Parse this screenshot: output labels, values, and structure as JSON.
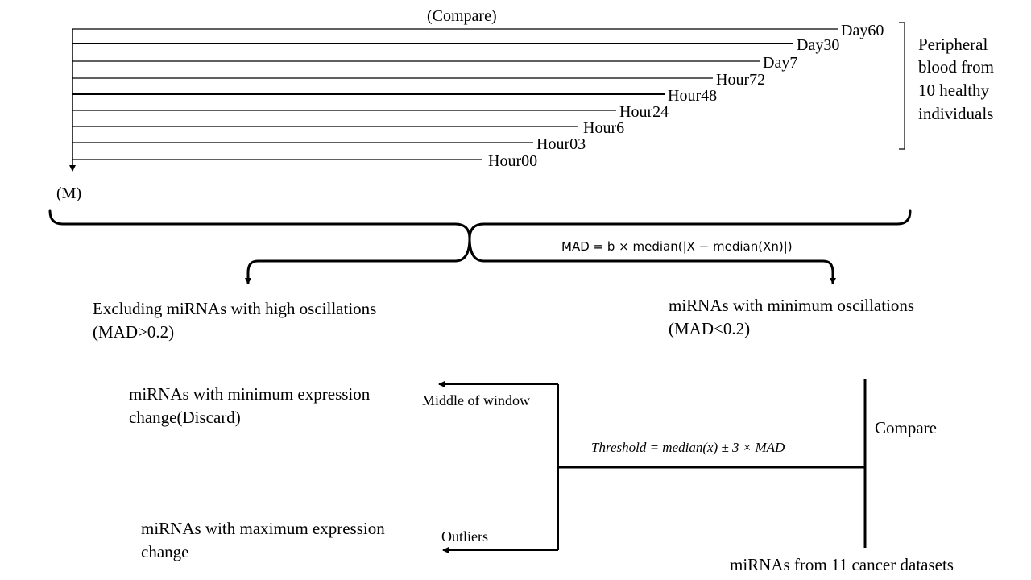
{
  "timeline": {
    "top_label": "(Compare)",
    "bottom_label": "(M)",
    "timepoints": [
      "Day60",
      "Day30",
      "Day7",
      "Hour72",
      "Hour48",
      "Hour24",
      "Hour6",
      "Hour03",
      "Hour00"
    ],
    "source_label_lines": [
      "Peripheral",
      "blood from",
      "10 healthy",
      "individuals"
    ]
  },
  "mad_formula": "MAD = b × median(|X − median(Xn)|)",
  "left_branch": {
    "line1": "Excluding miRNAs with high oscillations",
    "line2": "(MAD>0.2)"
  },
  "right_branch": {
    "line1": "miRNAs with minimum oscillations",
    "line2": "(MAD<0.2)"
  },
  "threshold_formula": "Threshold = median(x) ± 3 × MAD",
  "compare_label": "Compare",
  "datasets_label": "miRNAs from 11 cancer datasets",
  "middle_arrow_label": "Middle of window",
  "outliers_arrow_label": "Outliers",
  "minimum_change": {
    "line1": "miRNAs with minimum expression",
    "line2": "change(Discard)"
  },
  "maximum_change": {
    "line1": "miRNAs with maximum expression",
    "line2": "change"
  }
}
